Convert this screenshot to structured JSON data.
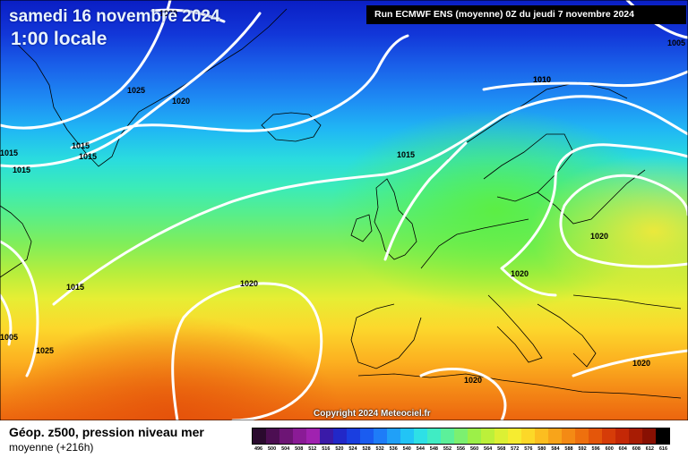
{
  "header": {
    "date": "samedi 16 novembre 2024",
    "time": "1:00 locale",
    "run": "Run ECMWF ENS (moyenne) 0Z du jeudi 7 novembre 2024"
  },
  "copyright": "Copyright 2024 Meteociel.fr",
  "legend": {
    "title": "Géop. z500, pression niveau mer",
    "subtitle": "moyenne   (+216h)",
    "scale_values": [
      "496",
      "500",
      "504",
      "508",
      "512",
      "516",
      "520",
      "524",
      "528",
      "532",
      "536",
      "540",
      "544",
      "548",
      "552",
      "556",
      "560",
      "564",
      "568",
      "572",
      "576",
      "580",
      "584",
      "588",
      "592",
      "596",
      "600",
      "604",
      "608",
      "612",
      "616"
    ],
    "scale_colors": [
      "#2a0a2e",
      "#4c0e52",
      "#6d1575",
      "#8a1b96",
      "#a022b0",
      "#3a1aa8",
      "#2228c8",
      "#1a3ee0",
      "#1a5cf0",
      "#1e7cf8",
      "#20a0f8",
      "#22c4f6",
      "#2ee0e6",
      "#40ecc4",
      "#5cf09a",
      "#7cf070",
      "#9cf048",
      "#bcf03a",
      "#dcf034",
      "#f6ec30",
      "#fcd828",
      "#fcbe20",
      "#f8a41a",
      "#f48a14",
      "#ee700e",
      "#e4560a",
      "#d63c08",
      "#c42806",
      "#a81c04",
      "#881002",
      "#000000"
    ]
  },
  "isobars": [
    {
      "text": "1030"
    },
    {
      "text": "1025"
    },
    {
      "text": "1020"
    },
    {
      "text": "1015"
    },
    {
      "text": "1015"
    },
    {
      "text": "1015"
    },
    {
      "text": "1015"
    },
    {
      "text": "1015"
    },
    {
      "text": "1010"
    },
    {
      "text": "1005"
    },
    {
      "text": "1010"
    },
    {
      "text": "1005"
    },
    {
      "text": "1020"
    },
    {
      "text": "1015"
    },
    {
      "text": "1025"
    },
    {
      "text": "1020"
    },
    {
      "text": "1020"
    },
    {
      "text": "1020"
    },
    {
      "text": "1020"
    }
  ]
}
